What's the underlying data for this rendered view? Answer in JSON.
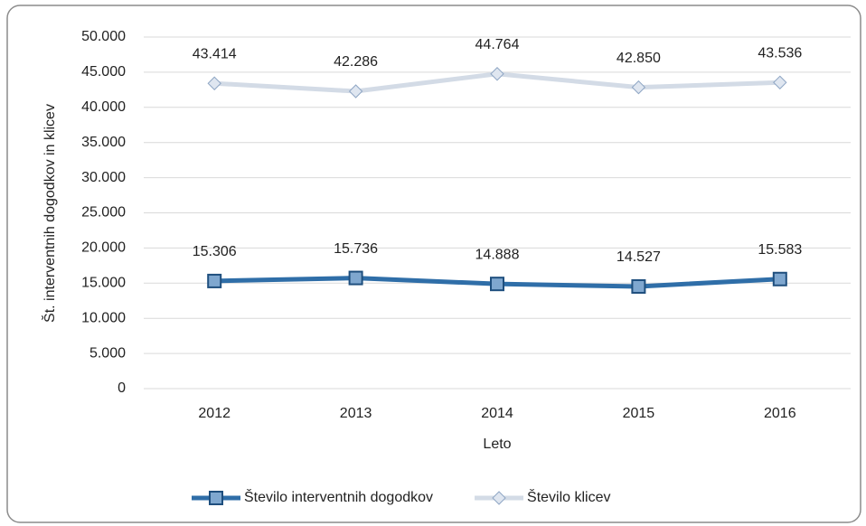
{
  "chart_data": {
    "type": "line",
    "x_label": "Leto",
    "y_label": "Št. interventnih dogodkov in klicev",
    "categories": [
      "2012",
      "2013",
      "2014",
      "2015",
      "2016"
    ],
    "series": [
      {
        "name": "Število interventnih dogodkov",
        "color": "#2f6ea8",
        "marker": "square",
        "values": [
          15306,
          15736,
          14888,
          14527,
          15583
        ],
        "value_labels": [
          "15.306",
          "15.736",
          "14.888",
          "14.527",
          "15.583"
        ]
      },
      {
        "name": "Število klicev",
        "color": "#d3dbe6",
        "marker": "diamond",
        "values": [
          43414,
          42286,
          44764,
          42850,
          43536
        ],
        "value_labels": [
          "43.414",
          "42.286",
          "44.764",
          "42.850",
          "43.536"
        ]
      }
    ],
    "ylim": [
      0,
      50000
    ],
    "yticks": [
      0,
      {
        "value": 5000,
        "label": "5.000"
      },
      {
        "value": 10000,
        "label": "10.000"
      },
      {
        "value": 15000,
        "label": "15.000"
      },
      {
        "value": 20000,
        "label": "20.000"
      },
      {
        "value": 25000,
        "label": "25.000"
      },
      {
        "value": 30000,
        "label": "30.000"
      },
      {
        "value": 35000,
        "label": "35.000"
      },
      {
        "value": 40000,
        "label": "40.000"
      },
      {
        "value": 45000,
        "label": "45.000"
      },
      {
        "value": 50000,
        "label": "50.000"
      }
    ],
    "grid": true,
    "legend": "bottom"
  }
}
